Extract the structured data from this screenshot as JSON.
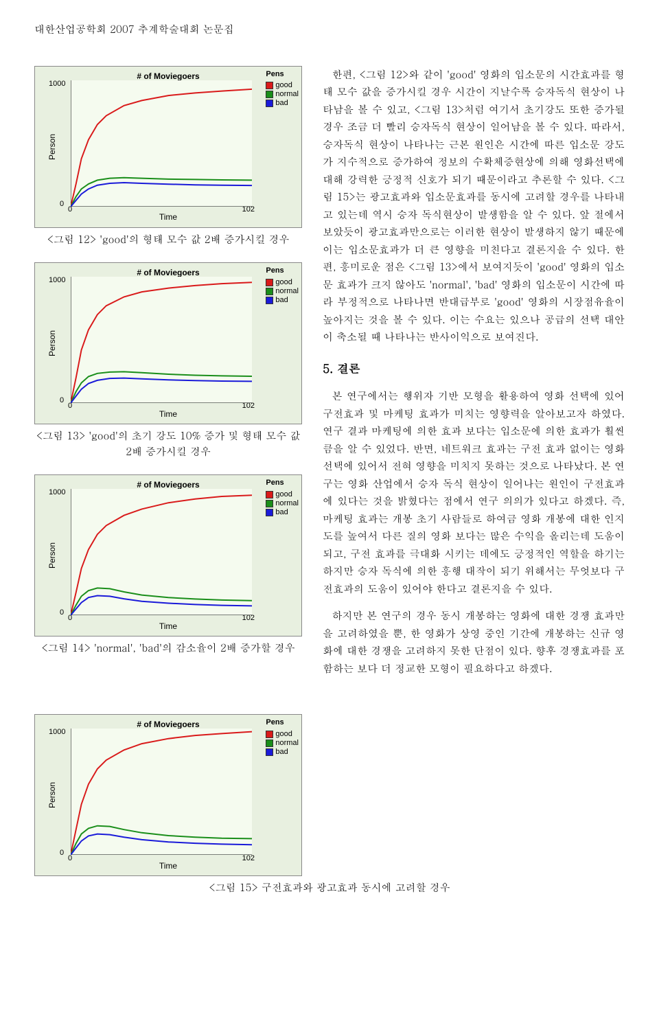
{
  "header": "대한산업공학회 2007 추계학술대회 논문집",
  "legend": {
    "title": "Pens",
    "items": [
      {
        "label": "good",
        "color": "#d91a1a"
      },
      {
        "label": "normal",
        "color": "#1a8e1a"
      },
      {
        "label": "bad",
        "color": "#1a1ad9"
      }
    ]
  },
  "chart_common": {
    "title": "# of Moviegoers",
    "ylabel": "Person",
    "xlabel": "Time",
    "xmax": "102",
    "ymax": "1000",
    "xmin": "0",
    "ymin": "0",
    "plot_bg": "#f5fbef",
    "box_bg": "#e8f0e0",
    "colors": {
      "good": "#d91a1a",
      "normal": "#1a8e1a",
      "bad": "#1a1ad9"
    },
    "line_width": 2
  },
  "charts": {
    "fig12": {
      "caption": "<그림 12> 'good'의 형태 모수 값 2배 증가시킬 경우",
      "good": [
        [
          0,
          0
        ],
        [
          3,
          180
        ],
        [
          6,
          380
        ],
        [
          10,
          530
        ],
        [
          15,
          650
        ],
        [
          20,
          720
        ],
        [
          30,
          800
        ],
        [
          40,
          840
        ],
        [
          55,
          880
        ],
        [
          70,
          900
        ],
        [
          85,
          915
        ],
        [
          102,
          930
        ]
      ],
      "normal": [
        [
          0,
          0
        ],
        [
          3,
          80
        ],
        [
          6,
          140
        ],
        [
          10,
          180
        ],
        [
          15,
          210
        ],
        [
          22,
          225
        ],
        [
          30,
          230
        ],
        [
          40,
          225
        ],
        [
          55,
          218
        ],
        [
          70,
          215
        ],
        [
          85,
          212
        ],
        [
          102,
          210
        ]
      ],
      "bad": [
        [
          0,
          0
        ],
        [
          3,
          50
        ],
        [
          6,
          100
        ],
        [
          10,
          140
        ],
        [
          15,
          170
        ],
        [
          22,
          185
        ],
        [
          30,
          190
        ],
        [
          40,
          185
        ],
        [
          55,
          178
        ],
        [
          70,
          173
        ],
        [
          85,
          170
        ],
        [
          102,
          168
        ]
      ]
    },
    "fig13": {
      "caption": "<그림 13> 'good'의 초기 강도 10% 증가 및 형태 모수 값 2배 증가시킬 경우",
      "good": [
        [
          0,
          0
        ],
        [
          3,
          200
        ],
        [
          6,
          420
        ],
        [
          10,
          580
        ],
        [
          15,
          700
        ],
        [
          20,
          770
        ],
        [
          30,
          840
        ],
        [
          40,
          880
        ],
        [
          55,
          910
        ],
        [
          70,
          930
        ],
        [
          85,
          945
        ],
        [
          102,
          955
        ]
      ],
      "normal": [
        [
          0,
          0
        ],
        [
          3,
          90
        ],
        [
          6,
          160
        ],
        [
          10,
          210
        ],
        [
          15,
          235
        ],
        [
          22,
          245
        ],
        [
          30,
          248
        ],
        [
          40,
          240
        ],
        [
          55,
          228
        ],
        [
          70,
          220
        ],
        [
          85,
          215
        ],
        [
          102,
          212
        ]
      ],
      "bad": [
        [
          0,
          0
        ],
        [
          3,
          55
        ],
        [
          6,
          110
        ],
        [
          10,
          155
        ],
        [
          15,
          180
        ],
        [
          22,
          195
        ],
        [
          30,
          198
        ],
        [
          40,
          192
        ],
        [
          55,
          183
        ],
        [
          70,
          178
        ],
        [
          85,
          174
        ],
        [
          102,
          172
        ]
      ]
    },
    "fig14": {
      "caption": "<그림 14> 'normal', 'bad'의 감소율이 2배 증가할 경우",
      "good": [
        [
          0,
          0
        ],
        [
          3,
          180
        ],
        [
          6,
          370
        ],
        [
          10,
          520
        ],
        [
          15,
          640
        ],
        [
          20,
          710
        ],
        [
          30,
          790
        ],
        [
          40,
          840
        ],
        [
          55,
          890
        ],
        [
          70,
          920
        ],
        [
          85,
          940
        ],
        [
          102,
          950
        ]
      ],
      "normal": [
        [
          0,
          0
        ],
        [
          3,
          80
        ],
        [
          6,
          150
        ],
        [
          10,
          195
        ],
        [
          15,
          215
        ],
        [
          22,
          210
        ],
        [
          30,
          185
        ],
        [
          40,
          160
        ],
        [
          55,
          140
        ],
        [
          70,
          128
        ],
        [
          85,
          120
        ],
        [
          102,
          115
        ]
      ],
      "bad": [
        [
          0,
          0
        ],
        [
          3,
          50
        ],
        [
          6,
          100
        ],
        [
          10,
          140
        ],
        [
          15,
          155
        ],
        [
          22,
          150
        ],
        [
          30,
          130
        ],
        [
          40,
          110
        ],
        [
          55,
          95
        ],
        [
          70,
          85
        ],
        [
          85,
          78
        ],
        [
          102,
          74
        ]
      ]
    },
    "fig15": {
      "caption": "<그림 15> 구전효과와 광고효과 동시에 고려할 경우",
      "good": [
        [
          0,
          0
        ],
        [
          3,
          200
        ],
        [
          6,
          400
        ],
        [
          10,
          560
        ],
        [
          15,
          680
        ],
        [
          20,
          750
        ],
        [
          30,
          830
        ],
        [
          40,
          880
        ],
        [
          55,
          920
        ],
        [
          70,
          945
        ],
        [
          85,
          960
        ],
        [
          102,
          975
        ]
      ],
      "normal": [
        [
          0,
          0
        ],
        [
          3,
          90
        ],
        [
          6,
          165
        ],
        [
          10,
          210
        ],
        [
          15,
          230
        ],
        [
          22,
          225
        ],
        [
          30,
          200
        ],
        [
          40,
          175
        ],
        [
          55,
          152
        ],
        [
          70,
          140
        ],
        [
          85,
          132
        ],
        [
          102,
          128
        ]
      ],
      "bad": [
        [
          0,
          0
        ],
        [
          3,
          55
        ],
        [
          6,
          110
        ],
        [
          10,
          150
        ],
        [
          15,
          165
        ],
        [
          22,
          160
        ],
        [
          30,
          140
        ],
        [
          40,
          120
        ],
        [
          55,
          102
        ],
        [
          70,
          92
        ],
        [
          85,
          85
        ],
        [
          102,
          80
        ]
      ]
    }
  },
  "paragraphs": {
    "p1": "한편, <그림 12>와 같이 'good' 영화의 입소문의 시간효과를 형태 모수 값을 증가시킬 경우 시간이 지날수록 승자독식 현상이 나타남을 볼 수 있고, <그림 13>처럼 여기서 초기강도 또한 증가될 경우 조금 더 빨리 승자독식 현상이 일어남을 볼 수 있다. 따라서, 승자독식 현상이 나타나는 근본 원인은 시간에 따른 입소문 강도가 지수적으로 증가하여 정보의 수확체증현상에 의해 영화선택에 대해 강력한 긍정적 신호가 되기 때문이라고 추론할 수 있다. <그림 15>는 광고효과와 입소문효과를 동시에 고려할 경우를 나타내고 있는데 역시 승자 독식현상이 발생함을 알 수 있다. 앞 절에서 보았듯이 광고효과만으로는 이러한 현상이 발생하지 않기 때문에 이는 입소문효과가 더 큰 영향을 미친다고 결론지을 수 있다. 한편, 흥미로운 점은 <그림 13>에서 보여지듯이 'good' 영화의 입소문 효과가 크지 않아도 'normal', 'bad' 영화의 입소문이 시간에 따라 부정적으로 나타나면 반대급부로 'good' 영화의 시장점유율이 높아지는 것을 볼 수 있다. 이는 수요는 있으나 공급의 선택 대안이 축소될 때 나타나는 반사이익으로 보여진다.",
    "section": "5. 결론",
    "p2": "본 연구에서는 행위자 기반 모형을 활용하여 영화 선택에 있어 구전효과 및 마케팅 효과가 미치는 영향력을 알아보고자 하였다. 연구 결과 마케팅에 의한 효과 보다는 입소문에 의한 효과가 훨씬 큼을 알 수 있었다. 반면, 네트워크 효과는 구전 효과 없이는 영화 선택에 있어서 전혀 영향을 미치지 못하는 것으로 나타났다. 본 연구는 영화 산업에서 승자 독식 현상이 일어나는 원인이 구전효과에 있다는 것을 밝혔다는 점에서 연구 의의가 있다고 하겠다. 즉, 마케팅 효과는 개봉 초기 사람들로 하여금 영화 개봉에 대한 인지도를 높여서 다른 질의 영화 보다는 많은 수익을 올리는데 도움이 되고, 구전 효과를 극대화 시키는 데에도 긍정적인 역할을 하기는 하지만 승자 독식에 의한 흥행 대작이 되기 위해서는 무엇보다 구전효과의 도움이 있어야 한다고 결론지을 수 있다.",
    "p3": "하지만 본 연구의 경우 동시 개봉하는 영화에 대한 경쟁 효과만을 고려하였을 뿐, 한 영화가 상영 중인 기간에 개봉하는 신규 영화에 대한 경쟁을 고려하지 못한 단점이 있다. 향후 경쟁효과를 포함하는 보다 더 정교한 모형이 필요하다고 하겠다."
  }
}
